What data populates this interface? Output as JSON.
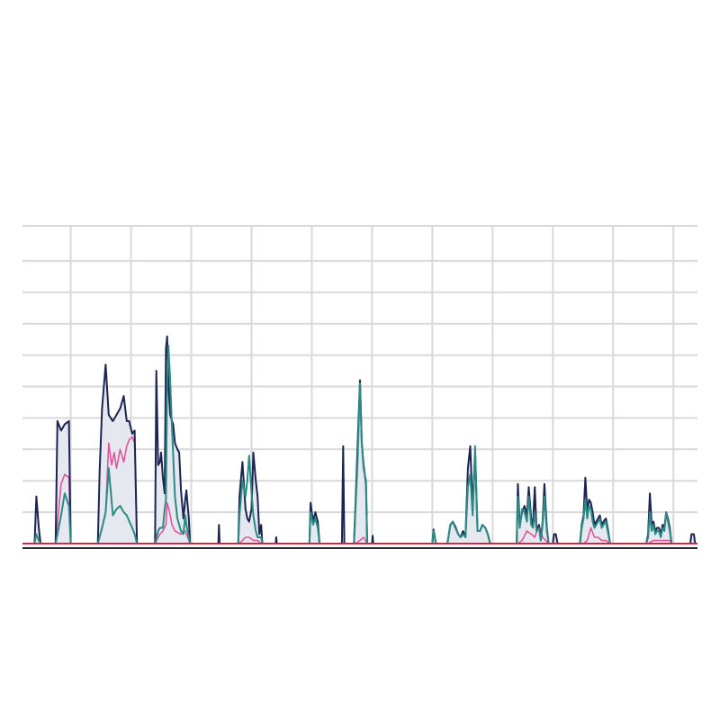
{
  "chart_data": {
    "type": "area",
    "title": "",
    "xlabel": "",
    "ylabel": "",
    "grid": true,
    "legend": "none",
    "x_range": [
      0,
      112
    ],
    "ylim": [
      0,
      10
    ],
    "y_grid_values": [
      1,
      2,
      3,
      4,
      5,
      6,
      7,
      8,
      9
    ],
    "x_grid_values": [
      8,
      18,
      28,
      38,
      48,
      58,
      68,
      78,
      88,
      98,
      108
    ],
    "colors": {
      "total": "#1c2452",
      "fill": "#e6e8ef",
      "teal": "#2a8a84",
      "pink": "#e0569a",
      "baseline": "#e0203a",
      "grid": "#d9d9d9",
      "axis": "#2b2b2b"
    },
    "series": [
      {
        "key": "total",
        "x": [
          2,
          2.3,
          2.7,
          3,
          5.5,
          5.8,
          6.4,
          7,
          7.7,
          8,
          12.5,
          12.8,
          13.2,
          13.8,
          14.3,
          15,
          15.6,
          16.2,
          16.8,
          17.3,
          17.7,
          18.2,
          18.6,
          19,
          22,
          22.2,
          22.5,
          22.8,
          23,
          23.3,
          23.6,
          23.8,
          24,
          24.2,
          24.5,
          24.8,
          25,
          25.3,
          25.7,
          26,
          26.3,
          26.7,
          27,
          27.2,
          27.6,
          27.8,
          32.5,
          32.6,
          32.7,
          35.8,
          36,
          36.5,
          37,
          37.3,
          37.6,
          38,
          38.3,
          38.7,
          39,
          39.3,
          39.6,
          39.8,
          42,
          42.1,
          42.2,
          47.6,
          47.8,
          48.2,
          48.6,
          49,
          49.3,
          53,
          53.2,
          53.4,
          55,
          55.3,
          55.6,
          56,
          56.3,
          56.6,
          57,
          57.2,
          58,
          58.1,
          58.2,
          68,
          68.2,
          68.6,
          70.5,
          71,
          71.4,
          71.8,
          72.3,
          72.7,
          73.1,
          73.5,
          73.9,
          74.3,
          74.7,
          75.1,
          75.5,
          75.9,
          76.3,
          76.8,
          77.2,
          77.6,
          82,
          82.2,
          82.5,
          82.9,
          83.3,
          83.7,
          84,
          84.4,
          84.7,
          85,
          85.3,
          85.7,
          86,
          86.3,
          86.6,
          87,
          87.3,
          88,
          88.2,
          88.5,
          88.8,
          92.5,
          92.8,
          93.1,
          93.4,
          93.7,
          94,
          94.3,
          94.6,
          94.9,
          95.2,
          95.5,
          95.8,
          96.1,
          96.4,
          96.8,
          97.1,
          97.5,
          103.5,
          103.8,
          104.1,
          104.4,
          104.7,
          105,
          105.3,
          105.6,
          105.9,
          106.2,
          106.5,
          106.8,
          107.1,
          107.4,
          107.7,
          110.8,
          111,
          111.4,
          111.6
        ],
        "y": [
          0,
          1.5,
          0.5,
          0,
          0,
          3.9,
          3.6,
          3.8,
          3.9,
          0,
          0,
          2.3,
          4.3,
          5.7,
          4.1,
          3.9,
          4.1,
          4.3,
          4.7,
          3.9,
          3.9,
          3.5,
          3.6,
          0,
          0,
          5.5,
          2.5,
          2.6,
          2.9,
          2.1,
          1.6,
          6.2,
          6.6,
          5.1,
          4.1,
          3.9,
          3.8,
          3.2,
          3.0,
          2.9,
          1.7,
          0.8,
          1.4,
          1.7,
          0.8,
          0,
          0,
          0.6,
          0,
          0,
          1.5,
          2.6,
          1.1,
          0.8,
          0.7,
          1.1,
          2.9,
          2.0,
          1.5,
          0.3,
          0.6,
          0,
          0,
          0.2,
          0,
          0,
          1.3,
          0.7,
          1.0,
          0.7,
          0,
          0,
          3.1,
          0,
          0,
          1.5,
          3.1,
          5.2,
          3.2,
          2.5,
          1.9,
          0,
          0,
          0.25,
          0,
          0,
          0.45,
          0,
          0,
          0.6,
          0.7,
          0.55,
          0.3,
          0.2,
          0.4,
          0.2,
          2.4,
          3.1,
          1.1,
          2.9,
          0.4,
          0.4,
          0.6,
          0.5,
          0.3,
          0,
          0,
          1.9,
          0.6,
          1.0,
          1.2,
          0.9,
          1.8,
          0.8,
          0.6,
          1.8,
          0.4,
          0.6,
          0.1,
          0.7,
          1.9,
          0.5,
          0,
          0,
          0.3,
          0.3,
          0,
          0,
          0.6,
          0.9,
          2.1,
          1.0,
          1.4,
          1.3,
          1.0,
          0.6,
          0.7,
          0.8,
          0.9,
          0.6,
          0.7,
          0.8,
          0.5,
          0,
          0,
          0.3,
          1.6,
          0.6,
          0.7,
          0.4,
          0.5,
          0.5,
          0.3,
          0.6,
          0.5,
          1.0,
          0.8,
          0.5,
          0,
          0,
          0.3,
          0.3,
          0
        ]
      },
      {
        "key": "teal",
        "x": [
          2,
          2.3,
          2.7,
          3,
          5.5,
          6.4,
          7,
          7.7,
          8,
          12.5,
          13.2,
          13.8,
          14.3,
          15,
          15.6,
          16.2,
          16.8,
          17.3,
          18.2,
          18.6,
          19,
          22,
          22.5,
          22.8,
          23.3,
          23.6,
          23.8,
          24,
          24.2,
          24.5,
          24.8,
          25.3,
          25.7,
          26,
          26.3,
          26.7,
          27,
          27.2,
          27.6,
          27.8,
          35.8,
          36,
          36.5,
          37,
          37.3,
          37.6,
          38,
          38.3,
          38.7,
          39,
          39.3,
          39.6,
          39.8,
          47.6,
          47.8,
          48.2,
          48.6,
          49,
          49.3,
          55,
          55.3,
          55.6,
          56,
          56.3,
          56.6,
          57,
          57.2,
          68,
          68.2,
          68.6,
          70.5,
          71,
          71.4,
          71.8,
          72.3,
          72.7,
          73.1,
          73.5,
          73.9,
          74.3,
          74.7,
          75.1,
          75.5,
          75.9,
          76.3,
          76.8,
          77.2,
          77.6,
          82,
          82.2,
          82.5,
          82.9,
          83.3,
          83.7,
          84,
          84.4,
          84.7,
          85,
          85.3,
          85.7,
          86,
          86.3,
          86.6,
          87,
          87.3,
          92.5,
          92.8,
          93.1,
          93.4,
          93.7,
          94,
          94.3,
          94.6,
          94.9,
          95.2,
          95.5,
          95.8,
          96.1,
          96.4,
          96.8,
          97.1,
          97.5,
          103.5,
          103.8,
          104.1,
          104.4,
          104.7,
          105,
          105.3,
          105.6,
          105.9,
          106.2,
          106.5,
          106.8,
          107.1,
          107.4,
          107.7
        ],
        "y": [
          0,
          0.3,
          0.1,
          0,
          0,
          0.9,
          1.6,
          1.2,
          0,
          0,
          0.5,
          1.0,
          2.4,
          0.9,
          1.1,
          1.2,
          1.0,
          0.9,
          0.5,
          0.3,
          0,
          0,
          0.4,
          0.5,
          0.5,
          1.1,
          1.4,
          5.1,
          6.3,
          5.2,
          3.7,
          1.5,
          0.8,
          0.6,
          0.4,
          0.3,
          0.9,
          0.6,
          0.2,
          0,
          0,
          0.9,
          2.0,
          1.5,
          2.0,
          2.8,
          1.6,
          0.9,
          0.4,
          0.2,
          0.2,
          0.2,
          0,
          0,
          1.0,
          0.6,
          0.8,
          0.5,
          0,
          0,
          1.3,
          2.6,
          5.1,
          3.2,
          2.4,
          2.0,
          0,
          0,
          0.4,
          0,
          0,
          0.6,
          0.7,
          0.5,
          0.3,
          0.2,
          0.3,
          0.2,
          1.8,
          2.2,
          0.9,
          3.1,
          0.4,
          0.4,
          0.6,
          0.5,
          0.3,
          0,
          0,
          1.5,
          0.5,
          1.1,
          1.0,
          0.7,
          1.5,
          0.6,
          0.5,
          1.0,
          0.4,
          0.5,
          0.1,
          0.6,
          1.5,
          0.4,
          0,
          0,
          0.5,
          0.8,
          1.4,
          0.8,
          1.2,
          1.1,
          0.7,
          0.5,
          0.6,
          0.7,
          0.8,
          0.5,
          0.6,
          0.7,
          0.4,
          0,
          0,
          0.2,
          1.0,
          0.4,
          0.6,
          0.3,
          0.4,
          0.4,
          0.2,
          0.5,
          0.4,
          1.0,
          0.7,
          0.4,
          0
        ]
      },
      {
        "key": "pink",
        "x": [
          5.5,
          6.4,
          7,
          7.7,
          8,
          12.5,
          13.2,
          13.8,
          14.3,
          14.8,
          15.2,
          15.6,
          16.2,
          16.8,
          17.3,
          17.7,
          18.2,
          18.6,
          19,
          22,
          22.5,
          22.8,
          23.3,
          23.8,
          24,
          24.4,
          24.8,
          25.3,
          26.3,
          27,
          27.8,
          36,
          36.5,
          37,
          37.6,
          38.3,
          39,
          39.6,
          55.3,
          56,
          56.6,
          57.2,
          82.2,
          82.9,
          83.7,
          84.4,
          85,
          85.7,
          86.3,
          87.3,
          93.1,
          93.7,
          94.3,
          94.9,
          95.5,
          96.1,
          96.8,
          97.5,
          103.8,
          104.7,
          105.6,
          106.5,
          107.4,
          107.7
        ],
        "y": [
          0,
          1.9,
          2.2,
          2.1,
          0,
          0,
          0.5,
          1.0,
          3.2,
          2.5,
          2.9,
          2.4,
          3.0,
          2.6,
          3.1,
          3.3,
          3.4,
          3.2,
          0,
          0,
          0.2,
          0.3,
          0.4,
          0.6,
          1.3,
          1.0,
          0.6,
          0.4,
          0.3,
          0.4,
          0,
          0,
          0.1,
          0.2,
          0.2,
          0.1,
          0.1,
          0,
          0,
          0.1,
          0.2,
          0,
          0,
          0.1,
          0.4,
          0.3,
          0.2,
          0.6,
          0.2,
          0,
          0,
          0.1,
          0.5,
          0.2,
          0.2,
          0.1,
          0.1,
          0,
          0,
          0.1,
          0.1,
          0.1,
          0.1,
          0
        ]
      }
    ]
  }
}
